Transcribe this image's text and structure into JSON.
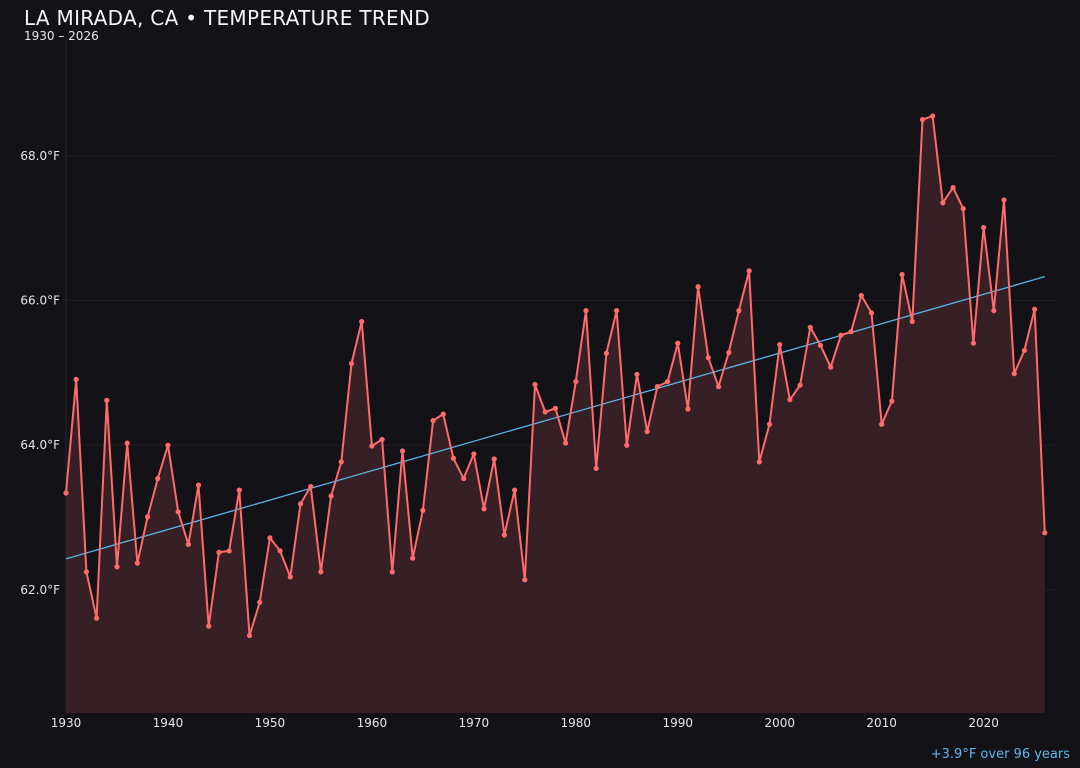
{
  "chart_data": {
    "type": "line",
    "title": "LA MIRADA, CA • TEMPERATURE TREND",
    "subtitle": "1930 – 2026",
    "xlabel": "",
    "ylabel": "",
    "xlim": [
      1930,
      2027
    ],
    "ylim": [
      60.3,
      69.6
    ],
    "grid": true,
    "x_ticks": [
      1930,
      1940,
      1950,
      1960,
      1970,
      1980,
      1990,
      2000,
      2010,
      2020
    ],
    "y_ticks": [
      62,
      64,
      66,
      68
    ],
    "y_tick_labels": [
      "62.0°F",
      "64.0°F",
      "66.0°F",
      "68.0°F"
    ],
    "x": [
      1930,
      1931,
      1932,
      1933,
      1934,
      1935,
      1936,
      1937,
      1938,
      1939,
      1940,
      1941,
      1942,
      1943,
      1944,
      1945,
      1946,
      1947,
      1948,
      1949,
      1950,
      1951,
      1952,
      1953,
      1954,
      1955,
      1956,
      1957,
      1958,
      1959,
      1960,
      1961,
      1962,
      1963,
      1964,
      1965,
      1966,
      1967,
      1968,
      1969,
      1970,
      1971,
      1972,
      1973,
      1974,
      1975,
      1976,
      1977,
      1978,
      1979,
      1980,
      1981,
      1982,
      1983,
      1984,
      1985,
      1986,
      1987,
      1988,
      1989,
      1990,
      1991,
      1992,
      1993,
      1994,
      1995,
      1996,
      1997,
      1998,
      1999,
      2000,
      2001,
      2002,
      2003,
      2004,
      2005,
      2006,
      2007,
      2008,
      2009,
      2010,
      2011,
      2012,
      2013,
      2014,
      2015,
      2016,
      2017,
      2018,
      2019,
      2020,
      2021,
      2022,
      2023,
      2024,
      2025,
      2026
    ],
    "series": [
      {
        "values": [
          63.34,
          64.91,
          62.25,
          61.61,
          64.62,
          62.32,
          64.03,
          62.37,
          63.01,
          63.54,
          64.0,
          63.08,
          62.63,
          63.45,
          61.5,
          62.52,
          62.54,
          63.38,
          61.37,
          61.83,
          62.72,
          62.54,
          62.18,
          63.19,
          63.43,
          62.25,
          63.3,
          63.77,
          65.13,
          65.71,
          63.99,
          64.08,
          62.25,
          63.92,
          62.44,
          63.1,
          64.34,
          64.43,
          63.82,
          63.54,
          63.88,
          63.12,
          63.81,
          62.76,
          63.38,
          62.14,
          64.84,
          64.46,
          64.51,
          64.03,
          64.88,
          65.86,
          63.68,
          65.27,
          65.86,
          64.0,
          64.98,
          64.19,
          64.81,
          64.88,
          65.41,
          64.5,
          66.19,
          65.21,
          64.81,
          65.28,
          65.86,
          66.41,
          63.77,
          64.29,
          65.39,
          64.63,
          64.83,
          65.63,
          65.38,
          65.08,
          65.52,
          65.57,
          66.07,
          65.83,
          64.29,
          64.61,
          66.36,
          65.71,
          68.5,
          68.55,
          67.35,
          67.56,
          67.27,
          65.41,
          67.01,
          65.86,
          67.39,
          64.99,
          65.31,
          65.88,
          62.79
        ],
        "color": "#ff6b6b",
        "fill": "#361f25"
      }
    ],
    "trend": {
      "start": [
        1930,
        62.43
      ],
      "end": [
        2026,
        66.33
      ],
      "color": "#5ab4e8"
    },
    "annotation": "+3.9°F over 96 years"
  }
}
